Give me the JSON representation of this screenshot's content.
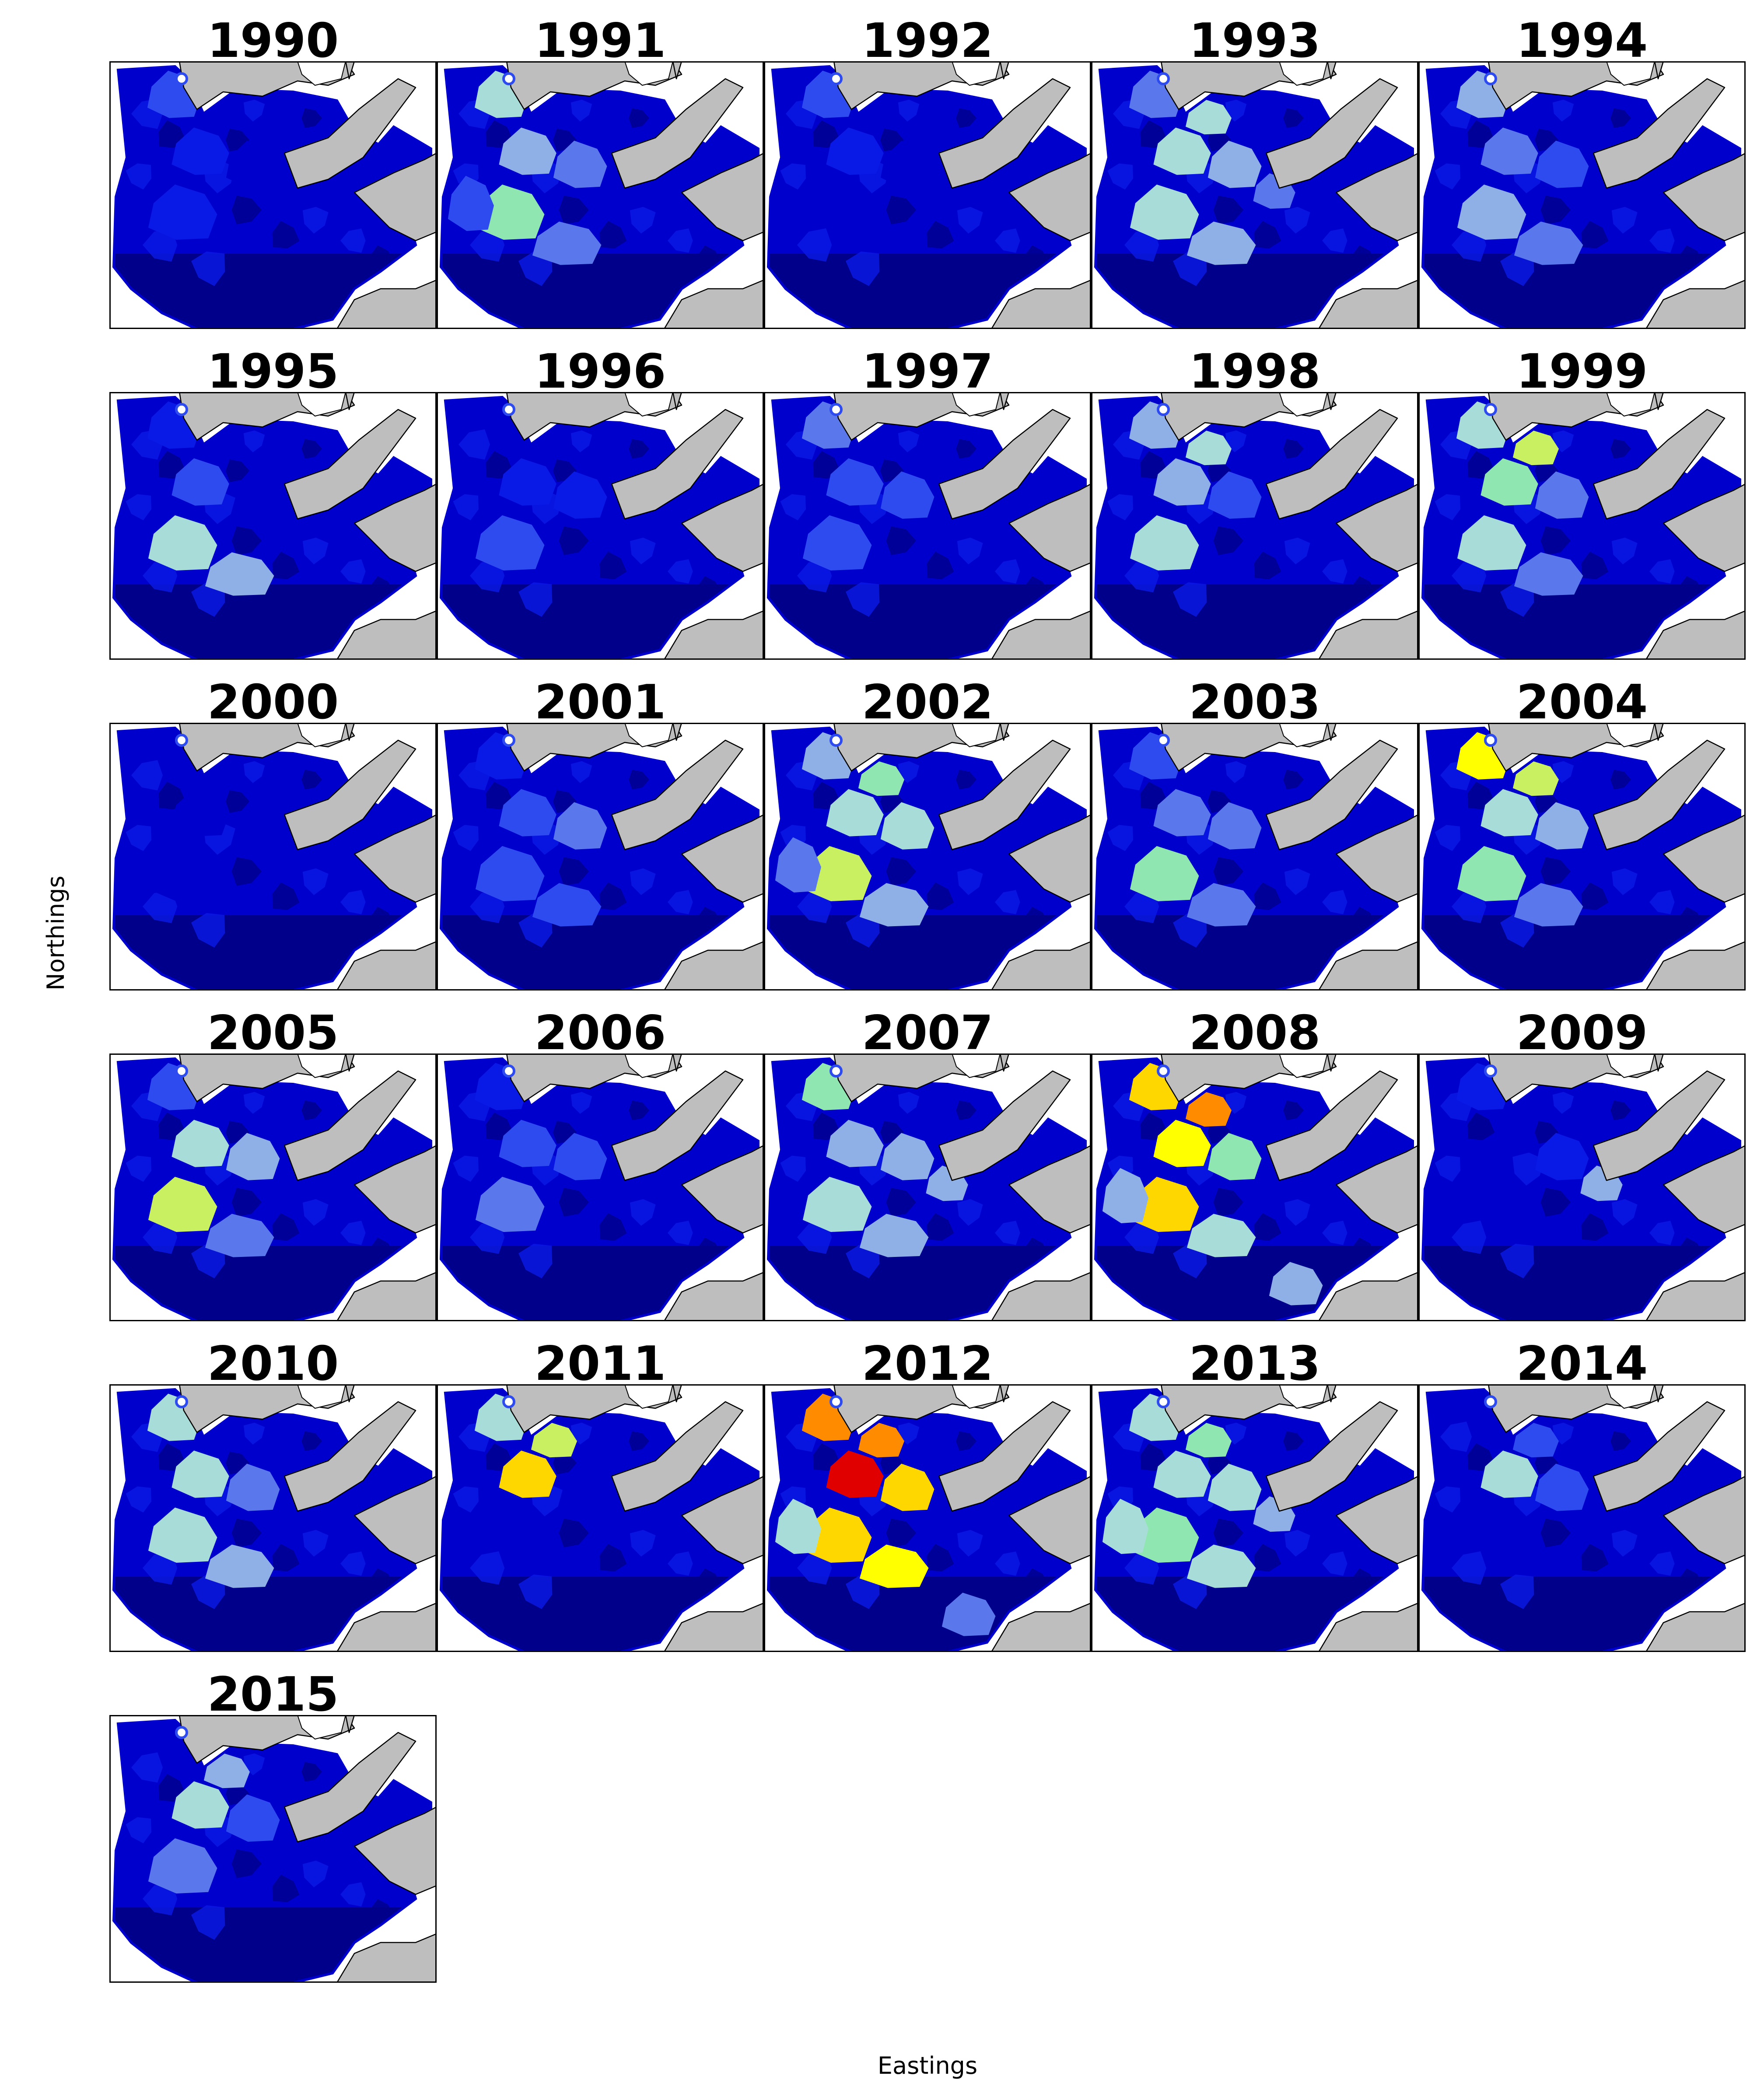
{
  "figure": {
    "xlabel": "Eastings",
    "ylabel": "Northings"
  },
  "colors": {
    "land": "#bebebe",
    "coast": "#000000",
    "scale": [
      "#00008b",
      "#0000cd",
      "#0a1ae6",
      "#2e4bf0",
      "#5a78eb",
      "#8fb0e6",
      "#a8dcd8",
      "#90e6b0",
      "#c8f060",
      "#ffff00",
      "#ffd700",
      "#ff8c00",
      "#ff3000",
      "#e00000"
    ]
  },
  "panels": [
    {
      "year": "1990",
      "hotspots": [
        {
          "k": "nw",
          "v": 3
        },
        {
          "k": "c1",
          "v": 2
        },
        {
          "k": "c2",
          "v": 2
        },
        {
          "k": "c3",
          "v": 1
        }
      ]
    },
    {
      "year": "1991",
      "hotspots": [
        {
          "k": "nw",
          "v": 6
        },
        {
          "k": "c1",
          "v": 5
        },
        {
          "k": "c2",
          "v": 7
        },
        {
          "k": "c3",
          "v": 4
        },
        {
          "k": "s1",
          "v": 4
        },
        {
          "k": "w",
          "v": 3
        }
      ]
    },
    {
      "year": "1992",
      "hotspots": [
        {
          "k": "nw",
          "v": 3
        },
        {
          "k": "c1",
          "v": 2
        },
        {
          "k": "c3",
          "v": 1
        }
      ]
    },
    {
      "year": "1993",
      "hotspots": [
        {
          "k": "nw",
          "v": 4
        },
        {
          "k": "n1",
          "v": 6
        },
        {
          "k": "c1",
          "v": 6
        },
        {
          "k": "c2",
          "v": 6
        },
        {
          "k": "c3",
          "v": 5
        },
        {
          "k": "e1",
          "v": 4
        },
        {
          "k": "s1",
          "v": 5
        }
      ]
    },
    {
      "year": "1994",
      "hotspots": [
        {
          "k": "nw",
          "v": 5
        },
        {
          "k": "c1",
          "v": 4
        },
        {
          "k": "c2",
          "v": 5
        },
        {
          "k": "c3",
          "v": 3
        },
        {
          "k": "s1",
          "v": 4
        }
      ]
    },
    {
      "year": "1995",
      "hotspots": [
        {
          "k": "nw",
          "v": 2
        },
        {
          "k": "c1",
          "v": 3
        },
        {
          "k": "c2",
          "v": 6
        },
        {
          "k": "s1",
          "v": 5
        }
      ]
    },
    {
      "year": "1996",
      "hotspots": [
        {
          "k": "c1",
          "v": 2
        },
        {
          "k": "c2",
          "v": 3
        },
        {
          "k": "c3",
          "v": 2
        }
      ]
    },
    {
      "year": "1997",
      "hotspots": [
        {
          "k": "nw",
          "v": 4
        },
        {
          "k": "c1",
          "v": 3
        },
        {
          "k": "c2",
          "v": 3
        },
        {
          "k": "c3",
          "v": 3
        }
      ]
    },
    {
      "year": "1998",
      "hotspots": [
        {
          "k": "nw",
          "v": 5
        },
        {
          "k": "n1",
          "v": 6
        },
        {
          "k": "c1",
          "v": 5
        },
        {
          "k": "c2",
          "v": 6
        },
        {
          "k": "c3",
          "v": 3
        }
      ]
    },
    {
      "year": "1999",
      "hotspots": [
        {
          "k": "nw",
          "v": 6
        },
        {
          "k": "n1",
          "v": 8
        },
        {
          "k": "c1",
          "v": 7
        },
        {
          "k": "c2",
          "v": 6
        },
        {
          "k": "c3",
          "v": 4
        },
        {
          "k": "s1",
          "v": 4
        }
      ]
    },
    {
      "year": "2000",
      "hotspots": [
        {
          "k": "c1",
          "v": 1
        },
        {
          "k": "c2",
          "v": 1
        }
      ]
    },
    {
      "year": "2001",
      "hotspots": [
        {
          "k": "nw",
          "v": 2
        },
        {
          "k": "c1",
          "v": 3
        },
        {
          "k": "c2",
          "v": 3
        },
        {
          "k": "c3",
          "v": 4
        },
        {
          "k": "s1",
          "v": 3
        }
      ]
    },
    {
      "year": "2002",
      "hotspots": [
        {
          "k": "nw",
          "v": 5
        },
        {
          "k": "n1",
          "v": 7
        },
        {
          "k": "c1",
          "v": 6
        },
        {
          "k": "c2",
          "v": 8
        },
        {
          "k": "c3",
          "v": 6
        },
        {
          "k": "s1",
          "v": 5
        },
        {
          "k": "w",
          "v": 4
        }
      ]
    },
    {
      "year": "2003",
      "hotspots": [
        {
          "k": "nw",
          "v": 3
        },
        {
          "k": "c1",
          "v": 4
        },
        {
          "k": "c2",
          "v": 7
        },
        {
          "k": "c3",
          "v": 4
        },
        {
          "k": "s1",
          "v": 4
        }
      ]
    },
    {
      "year": "2004",
      "hotspots": [
        {
          "k": "nw",
          "v": 9
        },
        {
          "k": "n1",
          "v": 8
        },
        {
          "k": "c1",
          "v": 6
        },
        {
          "k": "c2",
          "v": 7
        },
        {
          "k": "c3",
          "v": 5
        },
        {
          "k": "s1",
          "v": 4
        }
      ]
    },
    {
      "year": "2005",
      "hotspots": [
        {
          "k": "nw",
          "v": 3
        },
        {
          "k": "c1",
          "v": 6
        },
        {
          "k": "c2",
          "v": 8
        },
        {
          "k": "c3",
          "v": 5
        },
        {
          "k": "s1",
          "v": 4
        }
      ]
    },
    {
      "year": "2006",
      "hotspots": [
        {
          "k": "nw",
          "v": 2
        },
        {
          "k": "c1",
          "v": 3
        },
        {
          "k": "c2",
          "v": 4
        },
        {
          "k": "c3",
          "v": 3
        }
      ]
    },
    {
      "year": "2007",
      "hotspots": [
        {
          "k": "nw",
          "v": 7
        },
        {
          "k": "c1",
          "v": 5
        },
        {
          "k": "c2",
          "v": 6
        },
        {
          "k": "c3",
          "v": 5
        },
        {
          "k": "s1",
          "v": 5
        },
        {
          "k": "e1",
          "v": 5
        }
      ]
    },
    {
      "year": "2008",
      "hotspots": [
        {
          "k": "nw",
          "v": 10
        },
        {
          "k": "n1",
          "v": 11
        },
        {
          "k": "c1",
          "v": 9
        },
        {
          "k": "c2",
          "v": 10
        },
        {
          "k": "c3",
          "v": 7
        },
        {
          "k": "s1",
          "v": 6
        },
        {
          "k": "w",
          "v": 5
        },
        {
          "k": "se",
          "v": 5
        }
      ]
    },
    {
      "year": "2009",
      "hotspots": [
        {
          "k": "nw",
          "v": 2
        },
        {
          "k": "e1",
          "v": 5
        },
        {
          "k": "c3",
          "v": 2
        }
      ]
    },
    {
      "year": "2010",
      "hotspots": [
        {
          "k": "nw",
          "v": 6
        },
        {
          "k": "c1",
          "v": 6
        },
        {
          "k": "c2",
          "v": 6
        },
        {
          "k": "c3",
          "v": 4
        },
        {
          "k": "s1",
          "v": 5
        }
      ]
    },
    {
      "year": "2011",
      "hotspots": [
        {
          "k": "nw",
          "v": 6
        },
        {
          "k": "n1",
          "v": 8
        },
        {
          "k": "c1",
          "v": 10
        }
      ]
    },
    {
      "year": "2012",
      "hotspots": [
        {
          "k": "nw",
          "v": 11
        },
        {
          "k": "n1",
          "v": 11
        },
        {
          "k": "c1",
          "v": 13
        },
        {
          "k": "c2",
          "v": 10
        },
        {
          "k": "c3",
          "v": 10
        },
        {
          "k": "s1",
          "v": 9
        },
        {
          "k": "w",
          "v": 6
        },
        {
          "k": "se",
          "v": 4
        }
      ]
    },
    {
      "year": "2013",
      "hotspots": [
        {
          "k": "nw",
          "v": 6
        },
        {
          "k": "n1",
          "v": 7
        },
        {
          "k": "c1",
          "v": 6
        },
        {
          "k": "c2",
          "v": 7
        },
        {
          "k": "c3",
          "v": 6
        },
        {
          "k": "s1",
          "v": 6
        },
        {
          "k": "w",
          "v": 6
        },
        {
          "k": "e1",
          "v": 5
        }
      ]
    },
    {
      "year": "2014",
      "hotspots": [
        {
          "k": "c1",
          "v": 6
        },
        {
          "k": "c3",
          "v": 3
        },
        {
          "k": "n1",
          "v": 3
        }
      ]
    },
    {
      "year": "2015",
      "hotspots": [
        {
          "k": "c1",
          "v": 6
        },
        {
          "k": "c2",
          "v": 4
        },
        {
          "k": "c3",
          "v": 3
        },
        {
          "k": "n1",
          "v": 5
        }
      ]
    }
  ]
}
